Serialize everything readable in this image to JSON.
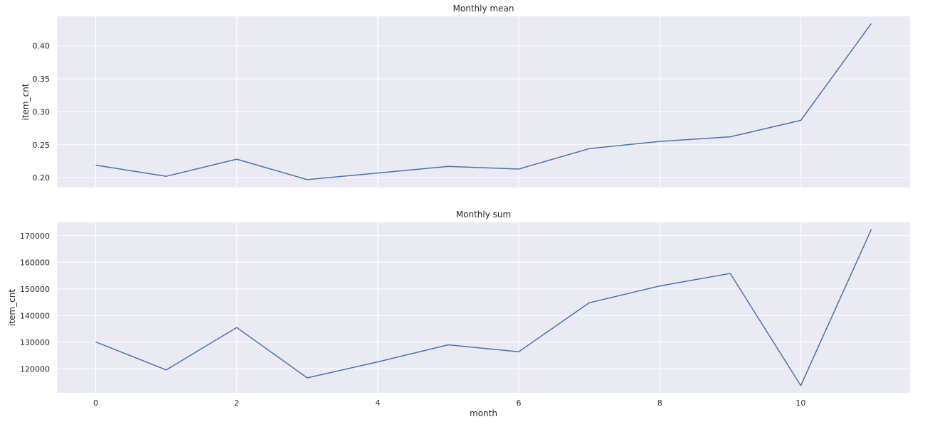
{
  "chart_data": [
    {
      "type": "line",
      "title": "Monthly mean",
      "xlabel": "",
      "ylabel": "item_cnt",
      "xlim": [
        -0.55,
        11.55
      ],
      "ylim": [
        0.185,
        0.445
      ],
      "x_ticks": [
        0,
        2,
        4,
        6,
        8,
        10
      ],
      "x_tick_labels_visible": false,
      "y_ticks": [
        0.2,
        0.25,
        0.3,
        0.35,
        0.4
      ],
      "y_tick_labels": [
        "0.20",
        "0.25",
        "0.30",
        "0.35",
        "0.40"
      ],
      "grid": true,
      "color": "#4c72b0",
      "background": "#eaeaf2",
      "x": [
        0,
        1,
        2,
        3,
        4,
        5,
        6,
        7,
        8,
        9,
        10,
        11
      ],
      "series": [
        {
          "values": [
            0.219,
            0.202,
            0.228,
            0.197,
            0.207,
            0.217,
            0.213,
            0.244,
            0.255,
            0.262,
            0.287,
            0.434
          ]
        }
      ]
    },
    {
      "type": "line",
      "title": "Monthly sum",
      "xlabel": "month",
      "ylabel": "item_cnt",
      "xlim": [
        -0.55,
        11.55
      ],
      "ylim": [
        111000,
        175000
      ],
      "x_ticks": [
        0,
        2,
        4,
        6,
        8,
        10
      ],
      "x_tick_labels": [
        "0",
        "2",
        "4",
        "6",
        "8",
        "10"
      ],
      "x_tick_labels_visible": true,
      "y_ticks": [
        120000,
        130000,
        140000,
        150000,
        160000,
        170000
      ],
      "y_tick_labels": [
        "120000",
        "130000",
        "140000",
        "150000",
        "160000",
        "170000"
      ],
      "grid": true,
      "color": "#4c72b0",
      "background": "#eaeaf2",
      "x": [
        0,
        1,
        2,
        3,
        4,
        5,
        6,
        7,
        8,
        9,
        10,
        11
      ],
      "series": [
        {
          "values": [
            130100,
            119600,
            135500,
            116600,
            122600,
            129000,
            126400,
            144800,
            151100,
            155800,
            113700,
            172300
          ]
        }
      ]
    }
  ]
}
